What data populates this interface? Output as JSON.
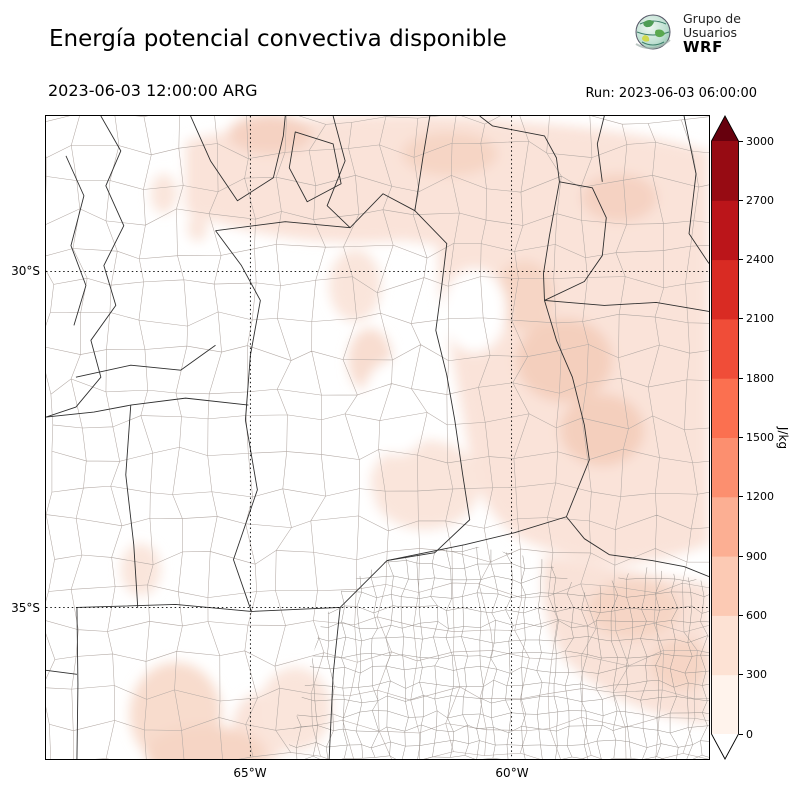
{
  "header": {
    "title": "Energía potencial convectiva disponible",
    "valid_time": "2023-06-03 12:00:00 ARG",
    "run_label": "Run: 2023-06-03 06:00:00",
    "logo": {
      "line1": "Grupo de",
      "line2": "Usuarios",
      "line3": "WRF"
    }
  },
  "map": {
    "lat_labels": [
      "30°S",
      "35°S"
    ],
    "lon_labels": [
      "65°W",
      "60°W"
    ]
  },
  "colorbar": {
    "unit": "J/kg",
    "ticks": [
      0,
      300,
      600,
      900,
      1200,
      1500,
      1800,
      2100,
      2400,
      2700,
      3000
    ],
    "colors": [
      "#fff3ec",
      "#fde2d4",
      "#fccab4",
      "#fcaf93",
      "#fc8f6f",
      "#fb7050",
      "#f04d38",
      "#d92b23",
      "#bb151a",
      "#970b13"
    ],
    "over_color": "#67000d",
    "under_color": "#ffffff"
  },
  "chart_data": {
    "type": "heatmap",
    "title": "Energía potencial convectiva disponible",
    "variable": "CAPE",
    "unit": "J/kg",
    "levels": [
      0,
      300,
      600,
      900,
      1200,
      1500,
      1800,
      2100,
      2400,
      2700,
      3000
    ],
    "colorbar_colors": [
      "#fff3ec",
      "#fde2d4",
      "#fccab4",
      "#fcaf93",
      "#fc8f6f",
      "#fb7050",
      "#f04d38",
      "#d92b23",
      "#bb151a",
      "#970b13"
    ],
    "x_ticks": [
      "65°W",
      "60°W"
    ],
    "y_ticks": [
      "30°S",
      "35°S"
    ],
    "value_range_shown": [
      0,
      600
    ],
    "notes": "Shading mostly 0-300 J/kg with patches near 300-600 J/kg over the north and east of the domain; western half near 0."
  }
}
